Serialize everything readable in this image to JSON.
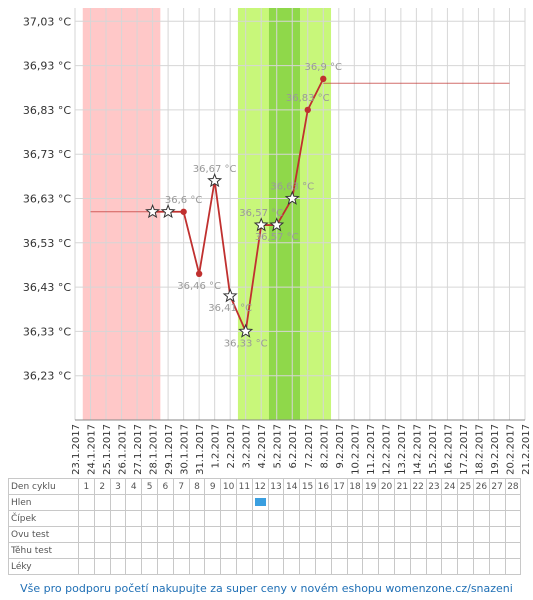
{
  "chart_data": {
    "type": "line",
    "y_unit": "°C",
    "ylim": [
      36.13,
      37.06
    ],
    "yticks": [
      "37,03 °C",
      "36,93 °C",
      "36,83 °C",
      "36,73 °C",
      "36,63 °C",
      "36,53 °C",
      "36,43 °C",
      "36,33 °C",
      "36,23 °C"
    ],
    "ytick_values": [
      37.03,
      36.93,
      36.83,
      36.73,
      36.63,
      36.53,
      36.43,
      36.33,
      36.23
    ],
    "x_dates": [
      "23.1.2017",
      "24.1.2017",
      "25.1.2017",
      "26.1.2017",
      "27.1.2017",
      "28.1.2017",
      "29.1.2017",
      "30.1.2017",
      "31.1.2017",
      "1.2.2017",
      "2.2.2017",
      "3.2.2017",
      "4.2.2017",
      "5.2.2017",
      "6.2.2017",
      "7.2.2017",
      "8.2.2017",
      "9.2.2017",
      "10.2.2017",
      "11.2.2017",
      "12.2.2017",
      "13.2.2017",
      "14.2.2017",
      "15.2.2017",
      "16.2.2017",
      "17.2.2017",
      "18.2.2017",
      "19.2.2017",
      "20.2.2017",
      "21.2.2017"
    ],
    "menstruation_range": [
      "24.1.2017",
      "28.1.2017"
    ],
    "fertile_range": [
      "3.2.2017",
      "8.2.2017"
    ],
    "peak_range": [
      "5.2.2017",
      "6.2.2017"
    ],
    "series": [
      {
        "points": [
          {
            "date": "28.1.2017",
            "value": 36.6,
            "marker": "star",
            "label": ""
          },
          {
            "date": "29.1.2017",
            "value": 36.6,
            "marker": "star",
            "label": ""
          },
          {
            "date": "30.1.2017",
            "value": 36.6,
            "marker": "dot",
            "label": "36,6 °C"
          },
          {
            "date": "31.1.2017",
            "value": 36.46,
            "marker": "dot",
            "label": "36,46 °C"
          },
          {
            "date": "1.2.2017",
            "value": 36.67,
            "marker": "star",
            "label": "36,67 °C"
          },
          {
            "date": "2.2.2017",
            "value": 36.41,
            "marker": "star",
            "label": "36,41 °C"
          },
          {
            "date": "3.2.2017",
            "value": 36.33,
            "marker": "star",
            "label": "36,33 °C"
          },
          {
            "date": "4.2.2017",
            "value": 36.57,
            "marker": "star",
            "label": "36,57 °C"
          },
          {
            "date": "5.2.2017",
            "value": 36.57,
            "marker": "star",
            "label": "36,57 °C"
          },
          {
            "date": "6.2.2017",
            "value": 36.63,
            "marker": "star",
            "label": "36,63 °C"
          },
          {
            "date": "7.2.2017",
            "value": 36.83,
            "marker": "dot",
            "label": "36,83 °C"
          },
          {
            "date": "8.2.2017",
            "value": 36.9,
            "marker": "dot",
            "label": "36,9 °C"
          }
        ]
      }
    ],
    "coverline_low": {
      "from": "24.1.2017",
      "to": "28.1.2017",
      "value": 36.6
    },
    "coverline_high": {
      "from": "8.2.2017",
      "to": "20.2.2017",
      "value": 36.89
    },
    "colors": {
      "line": "#c0302f",
      "menstruation": "#ffc8c8",
      "fertile": "#c8f77a",
      "peak": "#8fd84a",
      "grid": "#d6d6d6",
      "label": "#999999",
      "axis_text": "#333333"
    }
  },
  "table": {
    "rows": [
      {
        "label": "Den cyklu",
        "cells": [
          "1",
          "2",
          "3",
          "4",
          "5",
          "6",
          "7",
          "8",
          "9",
          "10",
          "11",
          "12",
          "13",
          "14",
          "15",
          "16",
          "17",
          "18",
          "19",
          "20",
          "21",
          "22",
          "23",
          "24",
          "25",
          "26",
          "27",
          "28"
        ]
      },
      {
        "label": "Hlen",
        "cells": [
          "",
          "",
          "",
          "",
          "",
          "",
          "",
          "",
          "",
          "",
          "",
          "■",
          "",
          "",
          "",
          "",
          "",
          "",
          "",
          "",
          "",
          "",
          "",
          "",
          "",
          "",
          "",
          ""
        ]
      },
      {
        "label": "Čípek",
        "cells": [
          "",
          "",
          "",
          "",
          "",
          "",
          "",
          "",
          "",
          "",
          "",
          "",
          "",
          "",
          "",
          "",
          "",
          "",
          "",
          "",
          "",
          "",
          "",
          "",
          "",
          "",
          "",
          ""
        ]
      },
      {
        "label": "Ovu test",
        "cells": [
          "",
          "",
          "",
          "",
          "",
          "",
          "",
          "",
          "",
          "",
          "",
          "",
          "",
          "",
          "",
          "",
          "",
          "",
          "",
          "",
          "",
          "",
          "",
          "",
          "",
          "",
          "",
          ""
        ]
      },
      {
        "label": "Těhu test",
        "cells": [
          "",
          "",
          "",
          "",
          "",
          "",
          "",
          "",
          "",
          "",
          "",
          "",
          "",
          "",
          "",
          "",
          "",
          "",
          "",
          "",
          "",
          "",
          "",
          "",
          "",
          "",
          "",
          ""
        ]
      },
      {
        "label": "Léky",
        "cells": [
          "",
          "",
          "",
          "",
          "",
          "",
          "",
          "",
          "",
          "",
          "",
          "",
          "",
          "",
          "",
          "",
          "",
          "",
          "",
          "",
          "",
          "",
          "",
          "",
          "",
          "",
          "",
          ""
        ]
      }
    ],
    "mucus_color": "#3a9fe0"
  },
  "footer": {
    "text": "Vše pro podporu početí nakupujte za super ceny v novém eshopu womenzone.cz/snazeni"
  }
}
